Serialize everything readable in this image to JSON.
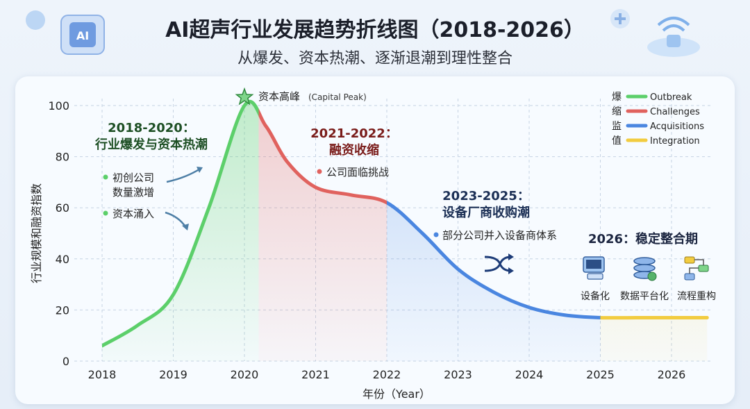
{
  "title": "AI超声行业发展趋势折线图（2018-2026）",
  "subtitle": "从爆发、资本热潮、逐渐退潮到理性整合",
  "chart_data": {
    "type": "line",
    "title": "AI超声行业发展趋势折线图（2018-2026）",
    "xlabel": "年份（Year）",
    "ylabel": "行业规模和融资指数",
    "x_ticks": [
      "2018",
      "2019",
      "2020",
      "2021",
      "2022",
      "2023",
      "2024",
      "2025",
      "2026"
    ],
    "y_ticks": [
      "0",
      "20",
      "40",
      "60",
      "80",
      "100"
    ],
    "ylim": [
      0,
      100
    ],
    "series": [
      {
        "x": [
          2018,
          2018.5,
          2019,
          2019.5,
          2020,
          2020.3,
          2020.6,
          2021,
          2021.5,
          2022,
          2022.5,
          2023,
          2023.5,
          2024,
          2024.5,
          2025,
          2025.5,
          2026,
          2026.5
        ],
        "values": [
          6,
          14,
          26,
          60,
          100,
          92,
          78,
          68,
          65,
          62,
          50,
          36,
          27,
          21,
          18,
          17,
          17,
          17,
          17
        ]
      }
    ],
    "phases": [
      {
        "name": "Outbreak",
        "color": "#5ccf6a",
        "from": 2018,
        "to": 2020.2
      },
      {
        "name": "Challenges",
        "color": "#e0625e",
        "from": 2020.2,
        "to": 2022
      },
      {
        "name": "Acquisitions",
        "color": "#4a86e0",
        "from": 2022,
        "to": 2025
      },
      {
        "name": "Integration",
        "color": "#f2cc40",
        "from": 2025,
        "to": 2026.6
      }
    ],
    "legend": {
      "title_chars": [
        "爆",
        "缩",
        "监",
        "值"
      ],
      "items": [
        {
          "label": "Outbreak",
          "color": "#5ccf6a"
        },
        {
          "label": "Challenges",
          "color": "#e0625e"
        },
        {
          "label": "Acquisitions",
          "color": "#4a86e0"
        },
        {
          "label": "Integration",
          "color": "#f2cc40"
        }
      ],
      "placement": "top-right"
    },
    "peak_label": "资本高峰",
    "peak_label_en": "(Capital Peak)",
    "annotations": {
      "phase1_title_1": "2018-2020：",
      "phase1_title_2": "行业爆发与资本热潮",
      "phase1_bullet_1a": "初创公司",
      "phase1_bullet_1b": "数量激增",
      "phase1_bullet_2": "资本涌入",
      "phase2_title_1": "2021-2022：",
      "phase2_title_2": "融资收缩",
      "phase2_bullet": "公司面临挑战",
      "phase3_title_1": "2023-2025：",
      "phase3_title_2": "设备厂商收购潮",
      "phase3_bullet": "部分公司并入设备商体系",
      "phase4_title": "2026：稳定整合期",
      "phase4_items": [
        "设备化",
        "数据平台化",
        "流程重构"
      ]
    },
    "grid": true
  }
}
